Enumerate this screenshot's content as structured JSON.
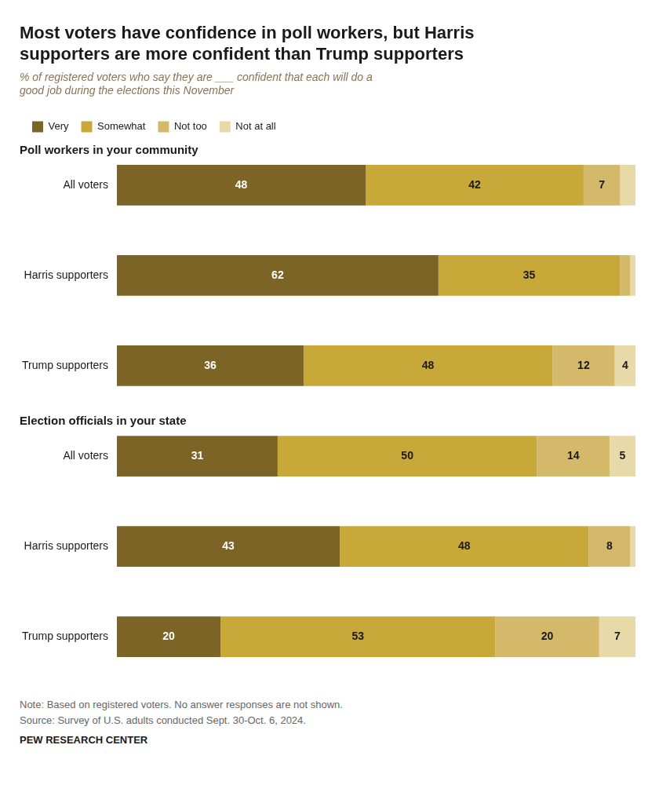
{
  "chart_data": {
    "type": "bar",
    "orientation": "horizontal",
    "stacked": true,
    "title": [
      "Most voters have confidence in poll workers, but Harris",
      "supporters are more confident than Trump supporters"
    ],
    "subtitle": "% of registered voters who say they are ___ confident that each will do a\ngood job during the elections this November",
    "categories": [
      "All voters",
      "Harris supporters",
      "Trump supporters",
      "All voters",
      "Harris supporters",
      "Trump supporters"
    ],
    "category_groups": [
      "Poll workers in your community",
      "Poll workers in your community",
      "Poll workers in your community",
      "Election officials in your state",
      "Election officials in your state",
      "Election officials in your state"
    ],
    "series": [
      {
        "name": "Very",
        "color": "#7b6426",
        "values": [
          48,
          62,
          36,
          31,
          43,
          20
        ],
        "value_labels": [
          "48",
          "62",
          "36",
          "31",
          "43",
          "20"
        ]
      },
      {
        "name": "Somewhat",
        "color": "#c8a838",
        "values": [
          42,
          35,
          48,
          50,
          48,
          53
        ],
        "value_labels": [
          "42",
          "35",
          "48",
          "50",
          "48",
          "53"
        ]
      },
      {
        "name": "Not too",
        "color": "#d4b96a",
        "values": [
          7,
          2,
          12,
          14,
          8,
          20
        ],
        "value_labels": [
          "7",
          null,
          "12",
          "14",
          "8",
          "20"
        ]
      },
      {
        "name": "Not at all",
        "color": "#e8d9a8",
        "values": [
          3,
          1,
          4,
          5,
          1,
          7
        ],
        "value_labels": [
          null,
          null,
          "4",
          "5",
          null,
          "7"
        ]
      }
    ],
    "xlim": [
      0,
      100
    ],
    "grid": false,
    "legend": "top",
    "data_labels": true,
    "tick_labels": "y",
    "annotations": [
      "Note: Based on registered voters. No answer responses are not shown.",
      "Source: Survey of U.S. adults conducted Sept. 30-Oct. 6, 2024.",
      "PEW RESEARCH CENTER"
    ]
  }
}
